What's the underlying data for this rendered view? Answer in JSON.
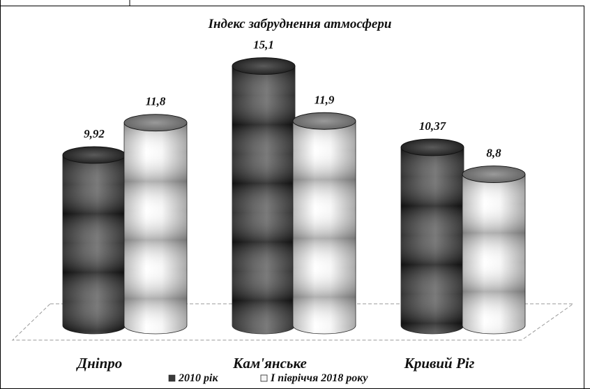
{
  "chart_data": {
    "type": "bar",
    "title": "Індекс забруднення атмосфери",
    "categories": [
      "Дніпро",
      "Кам'янське",
      "Кривий Ріг"
    ],
    "series": [
      {
        "name": "2010 рік",
        "values": [
          9.92,
          15.1,
          10.37
        ],
        "labels": [
          "9,92",
          "15,1",
          "10,37"
        ],
        "color": "#3a3a3a"
      },
      {
        "name": "І півріччя 2018 року",
        "values": [
          11.8,
          11.9,
          8.8
        ],
        "labels": [
          "11,8",
          "11,9",
          "8,8"
        ],
        "color": "#f2f2f2"
      }
    ],
    "ylim": [
      0,
      16
    ],
    "grid": false,
    "legend_position": "bottom",
    "style": "3d-cylinder"
  }
}
